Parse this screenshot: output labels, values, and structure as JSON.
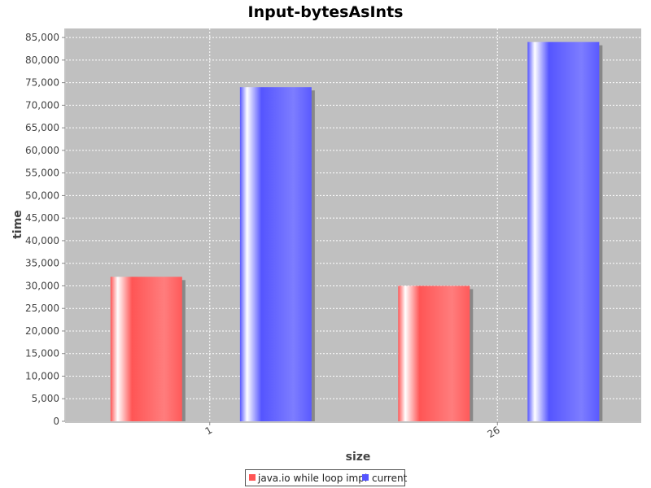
{
  "chart_data": {
    "type": "bar",
    "title": "Input-bytesAsInts",
    "xlabel": "size",
    "ylabel": "time",
    "categories": [
      "1",
      "26"
    ],
    "series": [
      {
        "name": "java.io while loop impl",
        "color": "#ff5555",
        "values": [
          32000,
          30000
        ]
      },
      {
        "name": "current",
        "color": "#5555ff",
        "values": [
          74000,
          84000
        ]
      }
    ],
    "ylim": [
      0,
      87000
    ],
    "yticks": [
      0,
      5000,
      10000,
      15000,
      20000,
      25000,
      30000,
      35000,
      40000,
      45000,
      50000,
      55000,
      60000,
      65000,
      70000,
      75000,
      80000,
      85000
    ],
    "grid": true,
    "legend_position": "bottom",
    "plot_background": "#c0c0c0"
  }
}
